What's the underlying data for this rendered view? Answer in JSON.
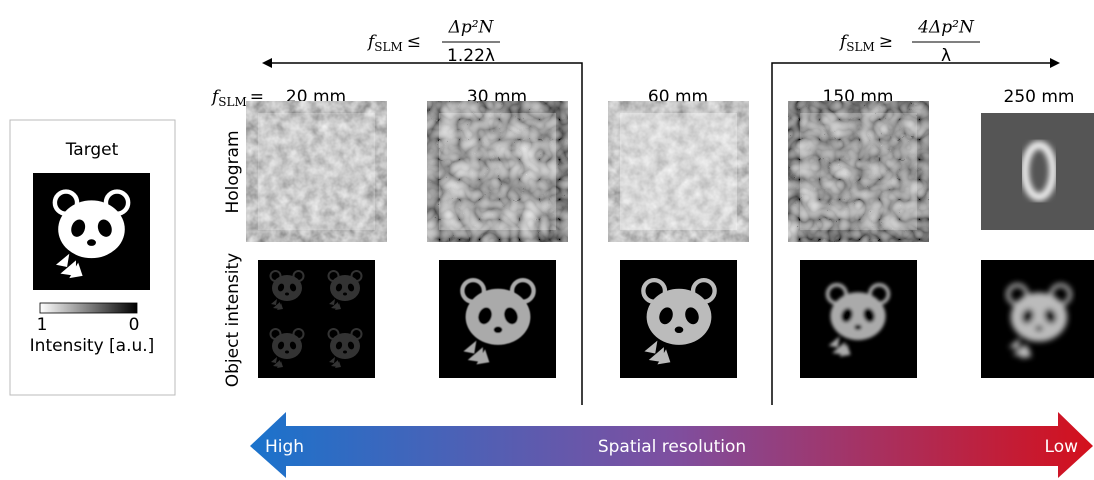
{
  "target_panel": {
    "title": "Target",
    "colorbar": {
      "max_label": "1",
      "min_label": "0",
      "label": "Intensity [a.u.]"
    }
  },
  "conditions": [
    {
      "lhs": "f",
      "subscript": "SLM",
      "relation": "≤",
      "numerator": "Δp²N",
      "denominator": "1.22λ"
    },
    {
      "lhs": "f",
      "subscript": "SLM",
      "relation": "≥",
      "numerator": "4Δp²N",
      "denominator": "λ"
    }
  ],
  "focal_prefix": {
    "lhs": "f",
    "subscript": "SLM",
    "relation": "="
  },
  "columns": [
    "20 mm",
    "30 mm",
    "60 mm",
    "150 mm",
    "250 mm"
  ],
  "rows": [
    "Hologram",
    "Object intensity"
  ],
  "resolution_arrow": {
    "left": "High",
    "center": "Spatial resolution",
    "right": "Low"
  }
}
